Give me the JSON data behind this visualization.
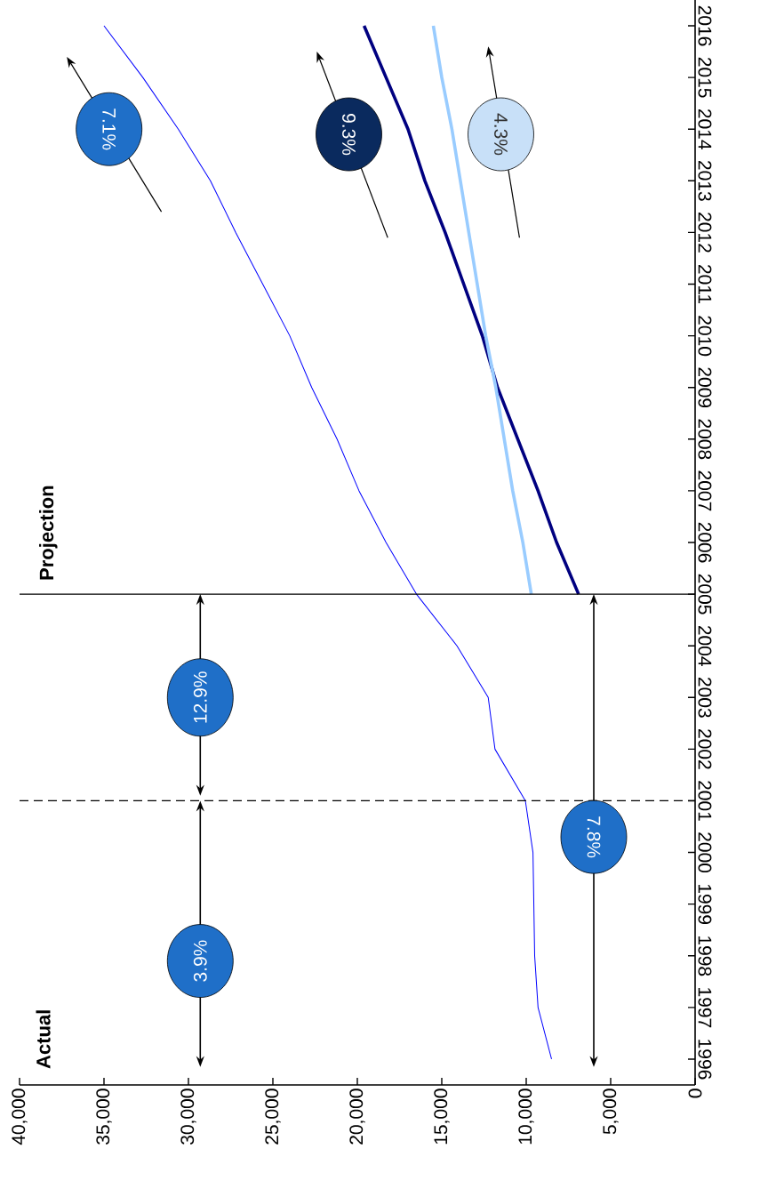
{
  "chart_data": {
    "type": "line",
    "series": [
      {
        "color": "#0000ff",
        "x": [
          8500,
          9300,
          9500,
          9550,
          9600,
          10050,
          11850,
          12250,
          14100,
          16500,
          18300,
          19900,
          21200,
          22700,
          24000,
          25600,
          27200,
          28700,
          30600,
          32700,
          35000
        ],
        "values": [
          1996,
          1997,
          1998,
          1999,
          2000,
          2001,
          2002,
          2003,
          2004,
          2005,
          2006,
          2007,
          2008,
          2009,
          2010,
          2011,
          2012,
          2013,
          2014,
          2015,
          2016
        ]
      },
      {
        "color": "#000080",
        "x": [
          6900,
          8200,
          9300,
          10500,
          11700,
          12600,
          13700,
          14800,
          16000,
          17000,
          18300,
          19600
        ],
        "values": [
          2005,
          2006,
          2007,
          2008,
          2009,
          2010,
          2011,
          2012,
          2013,
          2014,
          2015,
          2016
        ]
      },
      {
        "color": "#99ccff",
        "x": [
          9700,
          10200,
          10800,
          11300,
          11800,
          12400,
          12900,
          13400,
          13900,
          14400,
          15000,
          15500
        ],
        "values": [
          2005,
          2006,
          2007,
          2008,
          2009,
          2010,
          2011,
          2012,
          2013,
          2014,
          2015,
          2016
        ]
      }
    ],
    "xlim": [
      40000,
      0
    ],
    "xticks": [
      0,
      {
        "value": 5000,
        "label": "5,000"
      },
      {
        "value": 10000,
        "label": "10,000"
      },
      {
        "value": 15000,
        "label": "15,000"
      },
      {
        "value": 20000,
        "label": "20,000"
      },
      {
        "value": 25000,
        "label": "25,000"
      },
      {
        "value": 30000,
        "label": "30,000"
      },
      {
        "value": 35000,
        "label": "35,000"
      },
      {
        "value": 40000,
        "label": "40,000"
      }
    ],
    "ylim": [
      1995.5,
      2016.5
    ],
    "yticks": [
      1996,
      1997,
      1998,
      1999,
      2000,
      2001,
      2002,
      2003,
      2004,
      2005,
      2006,
      2007,
      2008,
      2009,
      2010,
      2011,
      2012,
      2013,
      2014,
      2015,
      2016
    ],
    "ref_lines": [
      {
        "axis": "y",
        "value": 2001,
        "color": "#000000",
        "line_style": "dashed"
      },
      {
        "axis": "y",
        "value": 2005,
        "color": "#000000",
        "line_style": "solid"
      }
    ],
    "annotations": [
      "Actual",
      "Projection",
      "3.9%",
      "12.9%",
      "7.8%",
      "7.1%",
      "9.3%",
      "4.3%"
    ],
    "marker": "none"
  }
}
